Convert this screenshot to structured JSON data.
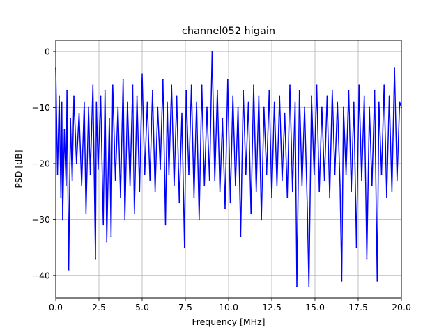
{
  "chart_data": {
    "type": "line",
    "title": "channel052 higain",
    "xlabel": "Frequency [MHz]",
    "ylabel": "PSD [dB]",
    "xlim": [
      0,
      20
    ],
    "ylim": [
      -44,
      2
    ],
    "x_ticks": [
      0,
      2.5,
      5,
      7.5,
      10,
      12.5,
      15,
      17.5,
      20
    ],
    "x_tick_labels": [
      "0.0",
      "2.5",
      "5.0",
      "7.5",
      "10.0",
      "12.5",
      "15.0",
      "17.5",
      "20.0"
    ],
    "y_ticks": [
      0,
      -10,
      -20,
      -30,
      -40
    ],
    "y_tick_labels": [
      "0",
      "−10",
      "−20",
      "−30",
      "−40"
    ],
    "grid": true,
    "legend": "none",
    "series": [
      {
        "color": "#0000ff",
        "x": [
          0.0,
          0.1,
          0.2,
          0.3,
          0.35,
          0.4,
          0.5,
          0.6,
          0.65,
          0.75,
          0.85,
          0.95,
          1.05,
          1.2,
          1.35,
          1.5,
          1.65,
          1.75,
          1.9,
          2.0,
          2.15,
          2.3,
          2.35,
          2.45,
          2.6,
          2.75,
          2.85,
          2.95,
          3.1,
          3.2,
          3.3,
          3.45,
          3.6,
          3.75,
          3.9,
          4.0,
          4.15,
          4.3,
          4.45,
          4.55,
          4.7,
          4.85,
          5.0,
          5.15,
          5.3,
          5.45,
          5.6,
          5.75,
          5.9,
          6.05,
          6.2,
          6.35,
          6.45,
          6.55,
          6.7,
          6.85,
          7.0,
          7.15,
          7.3,
          7.45,
          7.55,
          7.7,
          7.85,
          8.0,
          8.15,
          8.3,
          8.45,
          8.6,
          8.75,
          8.9,
          9.05,
          9.2,
          9.35,
          9.5,
          9.65,
          9.8,
          9.95,
          10.1,
          10.25,
          10.4,
          10.55,
          10.7,
          10.85,
          11.0,
          11.15,
          11.3,
          11.45,
          11.6,
          11.75,
          11.9,
          12.05,
          12.2,
          12.35,
          12.5,
          12.65,
          12.8,
          12.95,
          13.1,
          13.25,
          13.4,
          13.55,
          13.7,
          13.85,
          13.95,
          14.1,
          14.25,
          14.4,
          14.55,
          14.65,
          14.8,
          14.95,
          15.1,
          15.25,
          15.4,
          15.55,
          15.7,
          15.85,
          16.0,
          16.15,
          16.3,
          16.45,
          16.55,
          16.65,
          16.8,
          16.95,
          17.1,
          17.25,
          17.4,
          17.55,
          17.7,
          17.85,
          18.0,
          18.15,
          18.3,
          18.45,
          18.6,
          18.7,
          18.85,
          19.0,
          19.15,
          19.3,
          19.45,
          19.6,
          19.75,
          19.9,
          20.0
        ],
        "y": [
          -3,
          -22,
          -8,
          -26,
          -9,
          -30,
          -14,
          -24,
          -7,
          -39,
          -12,
          -23,
          -8,
          -20,
          -11,
          -24,
          -9,
          -29,
          -10,
          -22,
          -6,
          -37,
          -9,
          -21,
          -8,
          -31,
          -7,
          -34,
          -12,
          -33,
          -6,
          -23,
          -10,
          -26,
          -5,
          -30,
          -9,
          -24,
          -6,
          -29,
          -8,
          -25,
          -4,
          -22,
          -9,
          -23,
          -7,
          -25,
          -10,
          -21,
          -5,
          -31,
          -9,
          -22,
          -6,
          -24,
          -8,
          -27,
          -11,
          -35,
          -7,
          -22,
          -6,
          -26,
          -9,
          -30,
          -6,
          -24,
          -10,
          -23,
          0,
          -23,
          -7,
          -25,
          -12,
          -28,
          -5,
          -27,
          -8,
          -24,
          -10,
          -33,
          -7,
          -22,
          -9,
          -29,
          -6,
          -25,
          -8,
          -30,
          -10,
          -22,
          -7,
          -26,
          -9,
          -24,
          -8,
          -23,
          -11,
          -26,
          -6,
          -25,
          -9,
          -42,
          -7,
          -24,
          -10,
          -27,
          -42,
          -8,
          -22,
          -6,
          -25,
          -10,
          -23,
          -8,
          -26,
          -7,
          -22,
          -9,
          -24,
          -41,
          -10,
          -22,
          -7,
          -25,
          -9,
          -35,
          -6,
          -23,
          -8,
          -37,
          -10,
          -24,
          -7,
          -41,
          -9,
          -22,
          -6,
          -26,
          -8,
          -25,
          -3,
          -23,
          -9,
          -10
        ]
      }
    ]
  }
}
